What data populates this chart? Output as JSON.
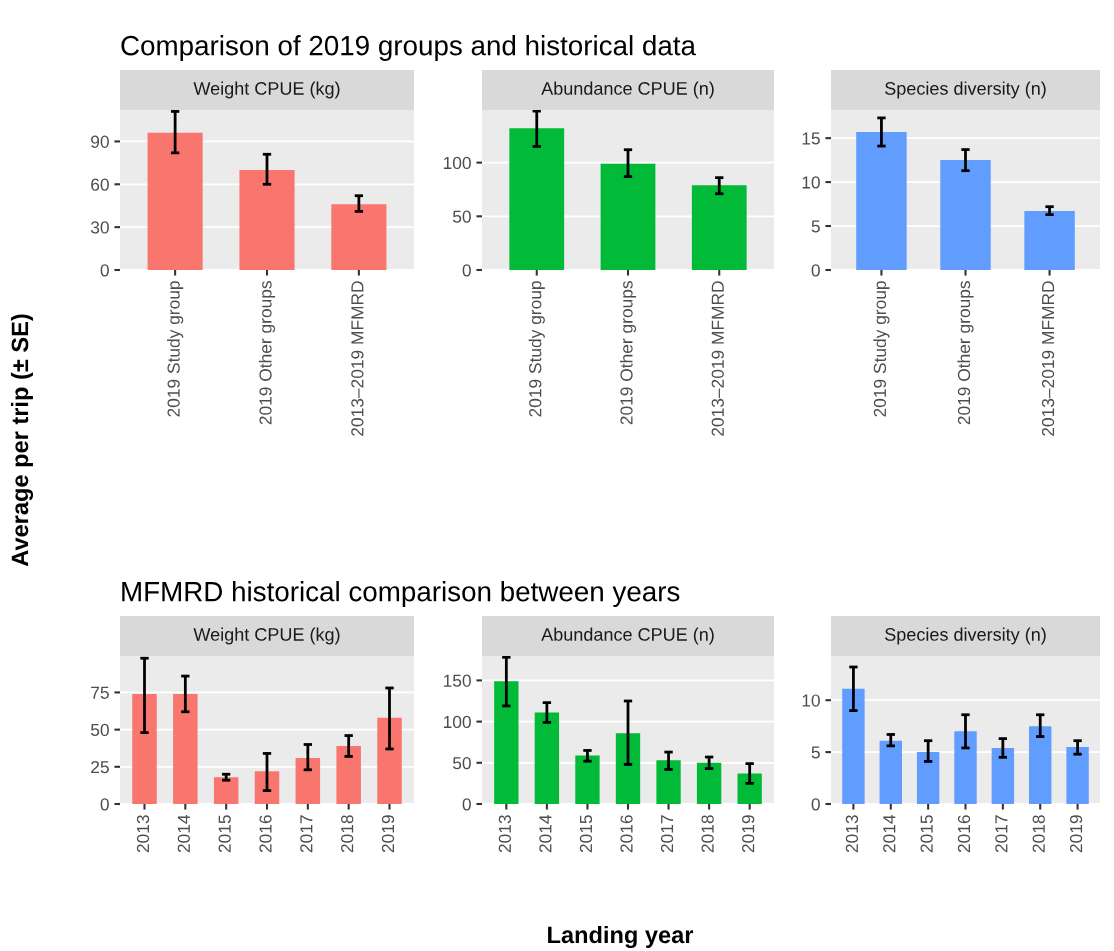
{
  "chart_data": [
    {
      "type": "bar",
      "title": "Weight CPUE (kg)",
      "annotations": [
        "Comparison of 2019 groups and historical data"
      ],
      "ylabel": "Average per trip (± SE)",
      "categories": [
        "2019 Study group",
        "2019 Other groups",
        "2013–2019 MFMRD"
      ],
      "series": [
        {
          "color": "#f8766d",
          "values": [
            96,
            70,
            46
          ],
          "errors": [
            [
              82,
              111
            ],
            [
              60,
              81
            ],
            [
              41,
              52
            ]
          ]
        }
      ],
      "ylim": [
        0,
        112
      ],
      "yticks": [
        0,
        30,
        60,
        90
      ],
      "grid": "y"
    },
    {
      "type": "bar",
      "title": "Abundance CPUE (n)",
      "categories": [
        "2019 Study group",
        "2019 Other groups",
        "2013–2019 MFMRD"
      ],
      "series": [
        {
          "color": "#00ba38",
          "values": [
            132,
            99,
            79
          ],
          "errors": [
            [
              115,
              148
            ],
            [
              87,
              112
            ],
            [
              71,
              86
            ]
          ]
        }
      ],
      "ylim": [
        0,
        149
      ],
      "yticks": [
        0,
        50,
        100
      ],
      "grid": "y"
    },
    {
      "type": "bar",
      "title": "Species diversity (n)",
      "categories": [
        "2019 Study group",
        "2019 Other groups",
        "2013–2019 MFMRD"
      ],
      "series": [
        {
          "color": "#619cff",
          "values": [
            15.7,
            12.5,
            6.7
          ],
          "errors": [
            [
              14.1,
              17.3
            ],
            [
              11.3,
              13.7
            ],
            [
              6.3,
              7.2
            ]
          ]
        }
      ],
      "ylim": [
        0,
        18.2
      ],
      "yticks": [
        0,
        5,
        10,
        15
      ],
      "grid": "y"
    },
    {
      "type": "bar",
      "title": "Weight CPUE (kg)",
      "annotations": [
        "MFMRD historical comparison between years"
      ],
      "categories": [
        "2013",
        "2014",
        "2015",
        "2016",
        "2017",
        "2018",
        "2019"
      ],
      "series": [
        {
          "color": "#f8766d",
          "values": [
            74,
            74,
            18,
            22,
            31,
            39,
            58
          ],
          "errors": [
            [
              48,
              98
            ],
            [
              62,
              86
            ],
            [
              16,
              20
            ],
            [
              9,
              34
            ],
            [
              23,
              40
            ],
            [
              32,
              46
            ],
            [
              37,
              78
            ]
          ]
        }
      ],
      "ylim": [
        0,
        99.5
      ],
      "yticks": [
        0,
        25,
        50,
        75
      ],
      "grid": "y"
    },
    {
      "type": "bar",
      "title": "Abundance CPUE (n)",
      "xlabel": "Landing year",
      "categories": [
        "2013",
        "2014",
        "2015",
        "2016",
        "2017",
        "2018",
        "2019"
      ],
      "series": [
        {
          "color": "#00ba38",
          "values": [
            149,
            111,
            59,
            86,
            53,
            50,
            37
          ],
          "errors": [
            [
              119,
              178
            ],
            [
              99,
              123
            ],
            [
              52,
              65
            ],
            [
              48,
              125
            ],
            [
              42,
              63
            ],
            [
              43,
              57
            ],
            [
              25,
              49
            ]
          ]
        }
      ],
      "ylim": [
        0,
        179.6
      ],
      "yticks": [
        0,
        50,
        100,
        150
      ],
      "grid": "y"
    },
    {
      "type": "bar",
      "title": "Species diversity (n)",
      "categories": [
        "2013",
        "2014",
        "2015",
        "2016",
        "2017",
        "2018",
        "2019"
      ],
      "series": [
        {
          "color": "#619cff",
          "values": [
            11.1,
            6.1,
            5.0,
            7.0,
            5.4,
            7.5,
            5.5
          ],
          "errors": [
            [
              9.0,
              13.2
            ],
            [
              5.6,
              6.7
            ],
            [
              4.1,
              6.1
            ],
            [
              5.4,
              8.6
            ],
            [
              4.5,
              6.3
            ],
            [
              6.5,
              8.6
            ],
            [
              4.8,
              6.1
            ]
          ]
        }
      ],
      "ylim": [
        0,
        14.26
      ],
      "yticks": [
        0,
        5,
        10
      ],
      "grid": "y"
    }
  ]
}
